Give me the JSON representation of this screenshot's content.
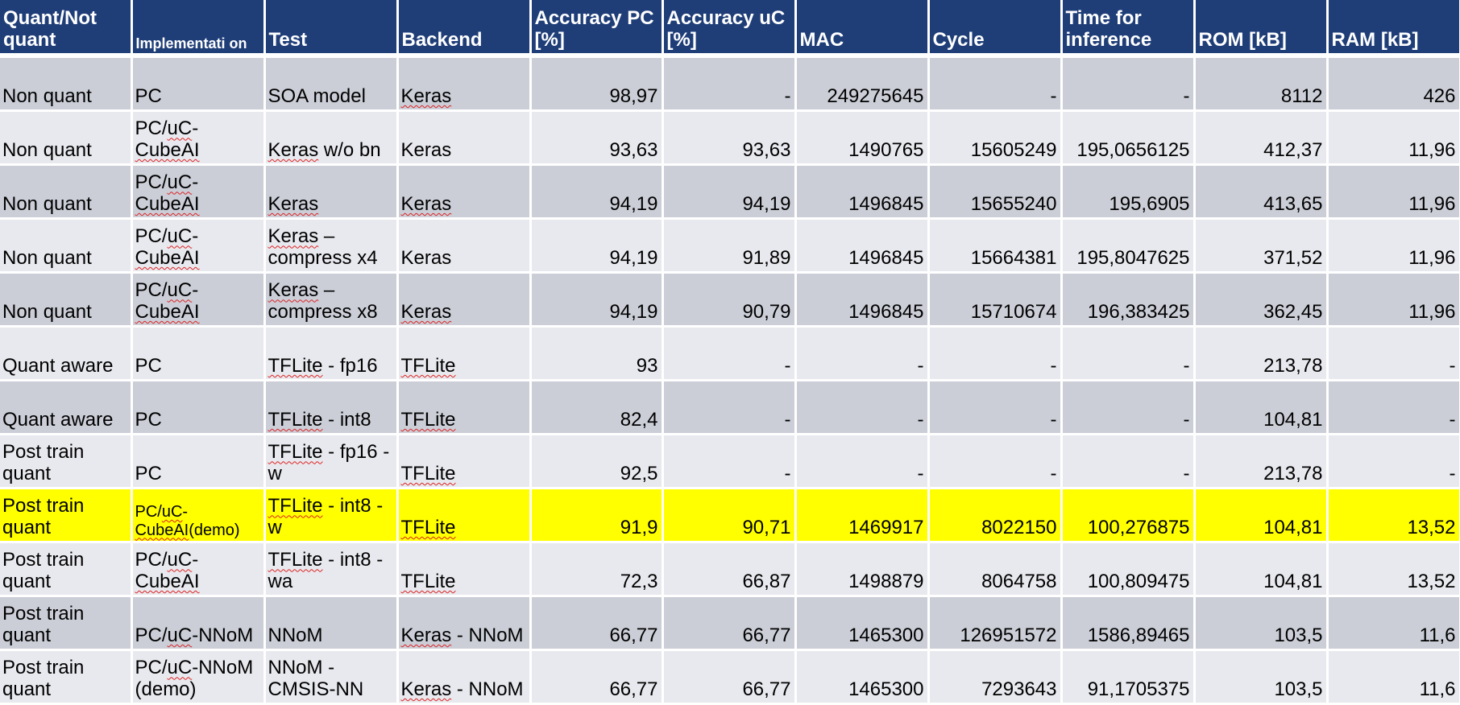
{
  "headers": [
    "Quant/Not quant",
    "Implementati on",
    "Test",
    "Backend",
    "Accuracy PC [%]",
    "Accuracy uC [%]",
    "MAC",
    "Cycle",
    "Time for inference",
    "ROM [kB]",
    "RAM [kB]"
  ],
  "rows": [
    [
      "Non quant",
      "PC",
      "SOA model",
      "Keras",
      "98,97",
      "-",
      "249275645",
      "-",
      "-",
      "8112",
      "426"
    ],
    [
      "Non quant",
      "PC/uC-CubeAI",
      "Keras w/o bn",
      "Keras",
      "93,63",
      "93,63",
      "1490765",
      "15605249",
      "195,0656125",
      "412,37",
      "11,96"
    ],
    [
      "Non quant",
      "PC/uC-CubeAI",
      "Keras",
      "Keras",
      "94,19",
      "94,19",
      "1496845",
      "15655240",
      "195,6905",
      "413,65",
      "11,96"
    ],
    [
      "Non quant",
      "PC/uC-CubeAI",
      "Keras – compress x4",
      "Keras",
      "94,19",
      "91,89",
      "1496845",
      "15664381",
      "195,8047625",
      "371,52",
      "11,96"
    ],
    [
      "Non quant",
      "PC/uC-CubeAI",
      "Keras – compress x8",
      "Keras",
      "94,19",
      "90,79",
      "1496845",
      "15710674",
      "196,383425",
      "362,45",
      "11,96"
    ],
    [
      "Quant aware",
      "PC",
      "TFLite - fp16",
      "TFLite",
      "93",
      "-",
      "-",
      "-",
      "-",
      "213,78",
      "-"
    ],
    [
      "Quant aware",
      "PC",
      "TFLite - int8",
      "TFLite",
      "82,4",
      "-",
      "-",
      "-",
      "-",
      "104,81",
      "-"
    ],
    [
      "Post train quant",
      "PC",
      "TFLite - fp16 - w",
      "TFLite",
      "92,5",
      "-",
      "-",
      "-",
      "-",
      "213,78",
      "-"
    ],
    [
      "Post train quant",
      "PC/uC-CubeAI(demo)",
      "TFLite - int8 - w",
      "TFLite",
      "91,9",
      "90,71",
      "1469917",
      "8022150",
      "100,276875",
      "104,81",
      "13,52"
    ],
    [
      "Post train quant",
      "PC/uC-CubeAI",
      "TFLite - int8 - wa",
      "TFLite",
      "72,3",
      "66,87",
      "1498879",
      "8064758",
      "100,809475",
      "104,81",
      "13,52"
    ],
    [
      "Post train quant",
      "PC/uC-NNoM",
      "NNoM",
      "Keras - NNoM",
      "66,77",
      "66,77",
      "1465300",
      "126951572",
      "1586,89465",
      "103,5",
      "11,6"
    ],
    [
      "Post train quant",
      "PC/uC-NNoM (demo)",
      "NNoM - CMSIS-NN",
      "Keras - NNoM",
      "66,77",
      "66,77",
      "1465300",
      "7293643",
      "91,1705375",
      "103,5",
      "11,6"
    ]
  ],
  "row_styles": [
    "dark",
    "light",
    "dark",
    "light",
    "dark",
    "light",
    "dark",
    "light",
    "highlight",
    "light",
    "dark",
    "light"
  ],
  "colors": {
    "header_bg": "#1f3e78",
    "row_dark": "#cbced7",
    "row_light": "#e8e9ee",
    "highlight": "#ffff00"
  }
}
